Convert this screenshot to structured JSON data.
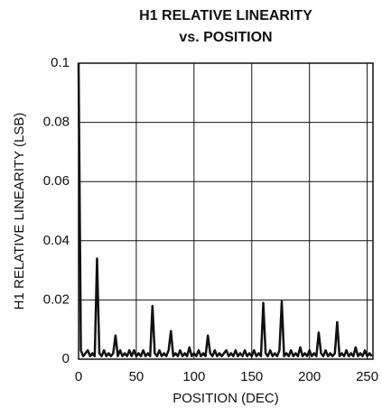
{
  "chart_data": {
    "type": "line",
    "title": [
      "H1 RELATIVE LINEARITY",
      "vs. POSITION"
    ],
    "x_label": "POSITION (DEC)",
    "y_label": "H1 RELATIVE LINEARITY (LSB)",
    "x": [
      0,
      2,
      4,
      6,
      8,
      10,
      12,
      14,
      16,
      18,
      20,
      22,
      24,
      26,
      28,
      30,
      32,
      34,
      36,
      38,
      40,
      42,
      44,
      46,
      48,
      50,
      52,
      54,
      56,
      58,
      60,
      62,
      64,
      66,
      68,
      70,
      72,
      74,
      76,
      78,
      80,
      82,
      84,
      86,
      88,
      90,
      92,
      94,
      96,
      98,
      100,
      102,
      104,
      106,
      108,
      110,
      112,
      114,
      116,
      118,
      120,
      122,
      124,
      126,
      128,
      130,
      132,
      134,
      136,
      138,
      140,
      142,
      144,
      146,
      148,
      150,
      152,
      154,
      156,
      158,
      160,
      162,
      164,
      166,
      168,
      170,
      172,
      174,
      176,
      178,
      180,
      182,
      184,
      186,
      188,
      190,
      192,
      194,
      196,
      198,
      200,
      202,
      204,
      206,
      208,
      210,
      212,
      214,
      216,
      218,
      220,
      222,
      224,
      226,
      228,
      230,
      232,
      234,
      236,
      238,
      240,
      242,
      244,
      246,
      248,
      250,
      252,
      254
    ],
    "series": [
      {
        "name": "H1",
        "color": "#111111",
        "values": [
          0.1,
          0.003,
          0.001,
          0.002,
          0.003,
          0.001,
          0.002,
          0.001,
          0.034,
          0.002,
          0.001,
          0.003,
          0.001,
          0.002,
          0.001,
          0.002,
          0.008,
          0.001,
          0.003,
          0.001,
          0.002,
          0.001,
          0.003,
          0.001,
          0.003,
          0.001,
          0.002,
          0.001,
          0.003,
          0.001,
          0.002,
          0.001,
          0.018,
          0.002,
          0.001,
          0.003,
          0.001,
          0.002,
          0.001,
          0.003,
          0.0095,
          0.001,
          0.002,
          0.001,
          0.003,
          0.001,
          0.002,
          0.001,
          0.004,
          0.001,
          0.002,
          0.001,
          0.003,
          0.001,
          0.002,
          0.001,
          0.008,
          0.002,
          0.001,
          0.003,
          0.001,
          0.002,
          0.001,
          0.002,
          0.003,
          0.001,
          0.002,
          0.001,
          0.003,
          0.001,
          0.002,
          0.001,
          0.003,
          0.001,
          0.002,
          0.001,
          0.003,
          0.001,
          0.002,
          0.001,
          0.019,
          0.002,
          0.001,
          0.003,
          0.001,
          0.002,
          0.001,
          0.003,
          0.0195,
          0.001,
          0.002,
          0.001,
          0.003,
          0.001,
          0.002,
          0.001,
          0.004,
          0.001,
          0.002,
          0.001,
          0.003,
          0.001,
          0.002,
          0.001,
          0.009,
          0.002,
          0.001,
          0.003,
          0.001,
          0.002,
          0.001,
          0.002,
          0.0125,
          0.001,
          0.002,
          0.001,
          0.003,
          0.001,
          0.002,
          0.001,
          0.004,
          0.001,
          0.002,
          0.001,
          0.003,
          0.001,
          0.002,
          0.001
        ]
      }
    ],
    "xlim": [
      0,
      255
    ],
    "xticks": [
      0,
      50,
      100,
      150,
      200,
      250
    ],
    "ylim": [
      0,
      0.1
    ],
    "yticks": [
      0,
      0.02,
      0.04,
      0.06,
      0.08,
      0.1
    ],
    "grid": true
  }
}
